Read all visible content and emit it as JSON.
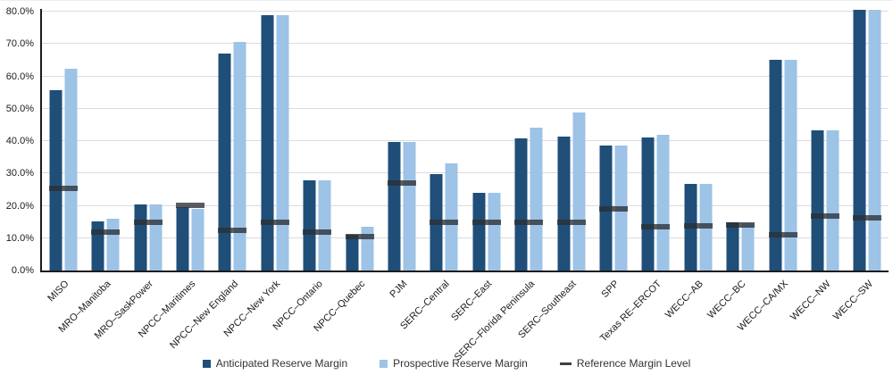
{
  "chart_data": {
    "type": "bar",
    "title": "",
    "xlabel": "",
    "ylabel": "",
    "units": "percent",
    "ylim": [
      0,
      80
    ],
    "y_tick_step": 10,
    "y_tick_labels": [
      "0.0%",
      "10.0%",
      "20.0%",
      "30.0%",
      "40.0%",
      "50.0%",
      "60.0%",
      "70.0%",
      "80.0%"
    ],
    "grid": true,
    "legend_position": "bottom",
    "categories": [
      "MISO",
      "MRO–Manitoba",
      "MRO–SaskPower",
      "NPCC–Maritimes",
      "NPCC–New England",
      "NPCC–New York",
      "NPCC–Ontario",
      "NPCC–Quebec",
      "PJM",
      "SERC–Central",
      "SERC–East",
      "SERC–Florida Peninsula",
      "SERC–Southeast",
      "SPP",
      "Texas RE–ERCOT",
      "WECC–AB",
      "WECC–BC",
      "WECC–CA/MX",
      "WECC–NW",
      "WECC–SW"
    ],
    "series": [
      {
        "name": "Anticipated Reserve Margin",
        "style": "bar",
        "color": "#1F4E79",
        "values": [
          55.7,
          15.2,
          20.4,
          19.6,
          67.0,
          78.9,
          28.0,
          11.1,
          39.6,
          29.9,
          24.0,
          40.9,
          41.5,
          38.6,
          41.1,
          26.9,
          15.0,
          65.2,
          43.3,
          80.7
        ]
      },
      {
        "name": "Prospective Reserve Margin",
        "style": "bar",
        "color": "#9DC3E6",
        "values": [
          62.3,
          16.0,
          20.5,
          19.1,
          70.7,
          78.9,
          28.0,
          13.4,
          39.6,
          33.1,
          24.1,
          44.2,
          48.8,
          38.5,
          42.0,
          26.9,
          14.5,
          65.2,
          43.3,
          80.7
        ]
      },
      {
        "name": "Reference Margin Level",
        "style": "dash-marker",
        "color": "#2B2F35",
        "values": [
          25.4,
          12.0,
          15.0,
          20.2,
          12.5,
          15.0,
          12.0,
          10.5,
          27.0,
          15.0,
          15.0,
          15.0,
          15.0,
          19.0,
          13.6,
          13.7,
          14.0,
          11.0,
          16.9,
          16.3
        ]
      }
    ]
  },
  "legend": {
    "items": [
      {
        "label": "Anticipated Reserve Margin",
        "swatch": "square",
        "color": "#1F4E79"
      },
      {
        "label": "Prospective Reserve Margin",
        "swatch": "square",
        "color": "#9DC3E6"
      },
      {
        "label": "Reference Margin Level",
        "swatch": "dash",
        "color": "#404040"
      }
    ]
  },
  "colors": {
    "anticipated_bar": "#1F4E79",
    "prospective_bar": "#9DC3E6",
    "reference_marker": "#2B2F35",
    "gridline": "#DCDCDC",
    "axis_line": "#1A1A1A",
    "tick_text": "#1A1A1A"
  }
}
